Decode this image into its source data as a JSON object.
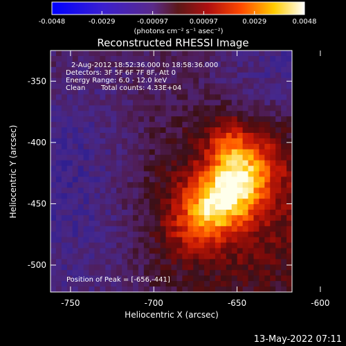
{
  "chart_data": {
    "type": "heatmap",
    "title": "Reconstructed RHESSI Image",
    "xlabel": "Heliocentric X (arcsec)",
    "ylabel": "Heliocentric Y (arcsec)",
    "xlim": [
      -762,
      -617
    ],
    "ylim": [
      -522,
      -325
    ],
    "x_ticks": [
      "-750",
      "-700",
      "-650",
      "-600"
    ],
    "x_tick_values": [
      -750,
      -700,
      -650,
      -600
    ],
    "y_ticks": [
      "-350",
      "-400",
      "-450",
      "-500"
    ],
    "y_tick_values": [
      -350,
      -400,
      -450,
      -500
    ],
    "colorbar": {
      "ticks": [
        "-0.0048",
        "-0.0029",
        "-0.00097",
        "0.00097",
        "0.0029",
        "0.0048"
      ],
      "tick_values": [
        -0.0048,
        -0.0029,
        -0.00097,
        0.00097,
        0.0029,
        0.0048
      ],
      "range": [
        -0.0048,
        0.0048
      ],
      "units": "(photons cm⁻² s⁻¹ asec⁻²)"
    },
    "annotations": {
      "time_range": "2-Aug-2012 18:52:36.000 to 18:58:36.000",
      "detectors": "Detectors: 3F 5F 6F 7F 8F, Att 0",
      "energy": "Energy Range: 6.0 - 12.0 keV",
      "clean_label": "Clean",
      "total_counts": "Total counts: 4.33E+04",
      "peak": "Position of Peak = [-656,-441]"
    },
    "peak": [
      -656,
      -441
    ],
    "colormap": "blue-purple-red-yellow-white"
  },
  "footer": {
    "date": "13-May-2022 07:11"
  }
}
